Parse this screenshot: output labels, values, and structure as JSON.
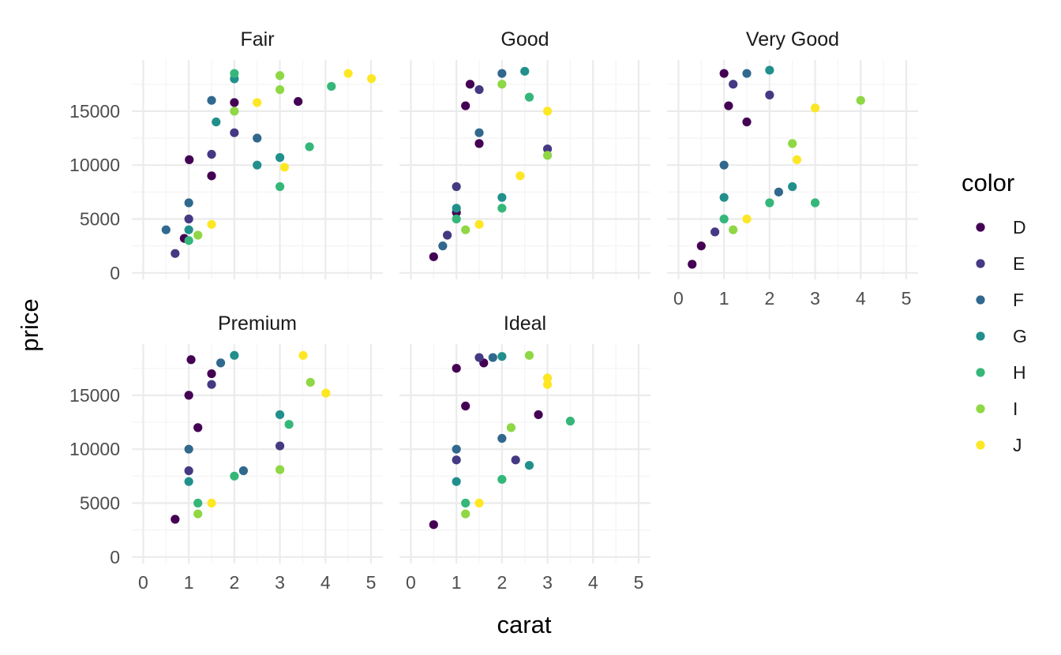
{
  "chart_data": {
    "type": "scatter",
    "facets": [
      "Fair",
      "Good",
      "Very Good",
      "Premium",
      "Ideal"
    ],
    "xlabel": "carat",
    "ylabel": "price",
    "xlim": [
      0,
      5.01
    ],
    "ylim": [
      326,
      18823
    ],
    "x_ticks": [
      0,
      1,
      2,
      3,
      4,
      5
    ],
    "y_ticks": [
      0,
      5000,
      10000,
      15000
    ],
    "grid": true,
    "legend": {
      "title": "color",
      "position": "right",
      "entries": [
        {
          "name": "D",
          "color": "#440154"
        },
        {
          "name": "E",
          "color": "#443A83"
        },
        {
          "name": "F",
          "color": "#31688E"
        },
        {
          "name": "G",
          "color": "#21908C"
        },
        {
          "name": "H",
          "color": "#35B779"
        },
        {
          "name": "I",
          "color": "#8FD744"
        },
        {
          "name": "J",
          "color": "#FDE725"
        }
      ]
    },
    "series": [
      {
        "name": "D",
        "points": [
          {
            "facet": "Fair",
            "x": 0.9,
            "y": 3200
          },
          {
            "facet": "Fair",
            "x": 1.01,
            "y": 10500
          },
          {
            "facet": "Fair",
            "x": 1.5,
            "y": 9000
          },
          {
            "facet": "Fair",
            "x": 2.0,
            "y": 15800
          },
          {
            "facet": "Fair",
            "x": 3.4,
            "y": 15900
          },
          {
            "facet": "Good",
            "x": 0.5,
            "y": 1500
          },
          {
            "facet": "Good",
            "x": 1.0,
            "y": 5600
          },
          {
            "facet": "Good",
            "x": 1.2,
            "y": 15500
          },
          {
            "facet": "Good",
            "x": 1.3,
            "y": 17500
          },
          {
            "facet": "Good",
            "x": 1.5,
            "y": 12000
          },
          {
            "facet": "Very Good",
            "x": 0.3,
            "y": 800
          },
          {
            "facet": "Very Good",
            "x": 0.5,
            "y": 2500
          },
          {
            "facet": "Very Good",
            "x": 1.0,
            "y": 18500
          },
          {
            "facet": "Very Good",
            "x": 1.1,
            "y": 15500
          },
          {
            "facet": "Very Good",
            "x": 1.5,
            "y": 14000
          },
          {
            "facet": "Premium",
            "x": 0.7,
            "y": 3500
          },
          {
            "facet": "Premium",
            "x": 1.0,
            "y": 15000
          },
          {
            "facet": "Premium",
            "x": 1.05,
            "y": 18300
          },
          {
            "facet": "Premium",
            "x": 1.2,
            "y": 12000
          },
          {
            "facet": "Premium",
            "x": 1.5,
            "y": 17000
          },
          {
            "facet": "Ideal",
            "x": 0.5,
            "y": 3000
          },
          {
            "facet": "Ideal",
            "x": 1.0,
            "y": 17500
          },
          {
            "facet": "Ideal",
            "x": 1.2,
            "y": 14000
          },
          {
            "facet": "Ideal",
            "x": 1.6,
            "y": 18000
          },
          {
            "facet": "Ideal",
            "x": 2.8,
            "y": 13200
          }
        ]
      },
      {
        "name": "E",
        "points": [
          {
            "facet": "Fair",
            "x": 0.7,
            "y": 1800
          },
          {
            "facet": "Fair",
            "x": 1.0,
            "y": 5000
          },
          {
            "facet": "Fair",
            "x": 1.5,
            "y": 11000
          },
          {
            "facet": "Fair",
            "x": 2.0,
            "y": 13000
          },
          {
            "facet": "Good",
            "x": 0.8,
            "y": 3500
          },
          {
            "facet": "Good",
            "x": 1.0,
            "y": 8000
          },
          {
            "facet": "Good",
            "x": 1.5,
            "y": 17000
          },
          {
            "facet": "Good",
            "x": 3.0,
            "y": 11500
          },
          {
            "facet": "Very Good",
            "x": 0.8,
            "y": 3800
          },
          {
            "facet": "Very Good",
            "x": 1.2,
            "y": 17500
          },
          {
            "facet": "Very Good",
            "x": 2.0,
            "y": 16500
          },
          {
            "facet": "Premium",
            "x": 1.0,
            "y": 8000
          },
          {
            "facet": "Premium",
            "x": 1.5,
            "y": 16000
          },
          {
            "facet": "Premium",
            "x": 3.0,
            "y": 10300
          },
          {
            "facet": "Ideal",
            "x": 1.0,
            "y": 9000
          },
          {
            "facet": "Ideal",
            "x": 1.5,
            "y": 18500
          },
          {
            "facet": "Ideal",
            "x": 2.3,
            "y": 9000
          }
        ]
      },
      {
        "name": "F",
        "points": [
          {
            "facet": "Fair",
            "x": 0.5,
            "y": 4000
          },
          {
            "facet": "Fair",
            "x": 1.0,
            "y": 6500
          },
          {
            "facet": "Fair",
            "x": 1.5,
            "y": 16000
          },
          {
            "facet": "Fair",
            "x": 2.5,
            "y": 12500
          },
          {
            "facet": "Good",
            "x": 0.7,
            "y": 2500
          },
          {
            "facet": "Good",
            "x": 1.5,
            "y": 13000
          },
          {
            "facet": "Good",
            "x": 2.0,
            "y": 18500
          },
          {
            "facet": "Very Good",
            "x": 1.0,
            "y": 10000
          },
          {
            "facet": "Very Good",
            "x": 1.5,
            "y": 18500
          },
          {
            "facet": "Very Good",
            "x": 2.2,
            "y": 7500
          },
          {
            "facet": "Premium",
            "x": 1.0,
            "y": 10000
          },
          {
            "facet": "Premium",
            "x": 1.7,
            "y": 18000
          },
          {
            "facet": "Premium",
            "x": 2.2,
            "y": 8000
          },
          {
            "facet": "Ideal",
            "x": 1.0,
            "y": 10000
          },
          {
            "facet": "Ideal",
            "x": 1.8,
            "y": 18500
          },
          {
            "facet": "Ideal",
            "x": 2.0,
            "y": 11000
          }
        ]
      },
      {
        "name": "G",
        "points": [
          {
            "facet": "Fair",
            "x": 1.0,
            "y": 4000
          },
          {
            "facet": "Fair",
            "x": 1.6,
            "y": 14000
          },
          {
            "facet": "Fair",
            "x": 2.0,
            "y": 18000
          },
          {
            "facet": "Fair",
            "x": 2.5,
            "y": 10000
          },
          {
            "facet": "Fair",
            "x": 3.0,
            "y": 10700
          },
          {
            "facet": "Good",
            "x": 1.0,
            "y": 6000
          },
          {
            "facet": "Good",
            "x": 2.0,
            "y": 7000
          },
          {
            "facet": "Good",
            "x": 2.5,
            "y": 18700
          },
          {
            "facet": "Very Good",
            "x": 1.0,
            "y": 7000
          },
          {
            "facet": "Very Good",
            "x": 2.0,
            "y": 18800
          },
          {
            "facet": "Very Good",
            "x": 2.5,
            "y": 8000
          },
          {
            "facet": "Premium",
            "x": 1.0,
            "y": 7000
          },
          {
            "facet": "Premium",
            "x": 2.0,
            "y": 18700
          },
          {
            "facet": "Premium",
            "x": 3.0,
            "y": 13200
          },
          {
            "facet": "Ideal",
            "x": 1.0,
            "y": 7000
          },
          {
            "facet": "Ideal",
            "x": 2.0,
            "y": 18600
          },
          {
            "facet": "Ideal",
            "x": 2.6,
            "y": 8500
          }
        ]
      },
      {
        "name": "H",
        "points": [
          {
            "facet": "Fair",
            "x": 1.0,
            "y": 3000
          },
          {
            "facet": "Fair",
            "x": 2.0,
            "y": 18500
          },
          {
            "facet": "Fair",
            "x": 3.0,
            "y": 8000
          },
          {
            "facet": "Fair",
            "x": 3.65,
            "y": 11700
          },
          {
            "facet": "Fair",
            "x": 4.13,
            "y": 17300
          },
          {
            "facet": "Good",
            "x": 1.0,
            "y": 5000
          },
          {
            "facet": "Good",
            "x": 2.0,
            "y": 6000
          },
          {
            "facet": "Good",
            "x": 2.6,
            "y": 16300
          },
          {
            "facet": "Very Good",
            "x": 1.0,
            "y": 5000
          },
          {
            "facet": "Very Good",
            "x": 2.0,
            "y": 6500
          },
          {
            "facet": "Very Good",
            "x": 3.0,
            "y": 6500
          },
          {
            "facet": "Premium",
            "x": 1.2,
            "y": 5000
          },
          {
            "facet": "Premium",
            "x": 2.0,
            "y": 7500
          },
          {
            "facet": "Premium",
            "x": 3.2,
            "y": 12300
          },
          {
            "facet": "Ideal",
            "x": 1.2,
            "y": 5000
          },
          {
            "facet": "Ideal",
            "x": 2.0,
            "y": 7200
          },
          {
            "facet": "Ideal",
            "x": 3.5,
            "y": 12600
          }
        ]
      },
      {
        "name": "I",
        "points": [
          {
            "facet": "Fair",
            "x": 1.2,
            "y": 3500
          },
          {
            "facet": "Fair",
            "x": 2.0,
            "y": 15000
          },
          {
            "facet": "Fair",
            "x": 3.0,
            "y": 17000
          },
          {
            "facet": "Fair",
            "x": 3.0,
            "y": 18300
          },
          {
            "facet": "Good",
            "x": 1.2,
            "y": 4000
          },
          {
            "facet": "Good",
            "x": 2.0,
            "y": 17500
          },
          {
            "facet": "Good",
            "x": 3.0,
            "y": 10900
          },
          {
            "facet": "Very Good",
            "x": 1.2,
            "y": 4000
          },
          {
            "facet": "Very Good",
            "x": 2.5,
            "y": 12000
          },
          {
            "facet": "Very Good",
            "x": 4.0,
            "y": 16000
          },
          {
            "facet": "Premium",
            "x": 1.2,
            "y": 4000
          },
          {
            "facet": "Premium",
            "x": 3.0,
            "y": 8100
          },
          {
            "facet": "Premium",
            "x": 3.67,
            "y": 16200
          },
          {
            "facet": "Ideal",
            "x": 1.2,
            "y": 4000
          },
          {
            "facet": "Ideal",
            "x": 2.2,
            "y": 12000
          },
          {
            "facet": "Ideal",
            "x": 2.6,
            "y": 18700
          }
        ]
      },
      {
        "name": "J",
        "points": [
          {
            "facet": "Fair",
            "x": 1.5,
            "y": 4500
          },
          {
            "facet": "Fair",
            "x": 2.5,
            "y": 15800
          },
          {
            "facet": "Fair",
            "x": 3.1,
            "y": 9800
          },
          {
            "facet": "Fair",
            "x": 4.5,
            "y": 18500
          },
          {
            "facet": "Fair",
            "x": 5.01,
            "y": 18018
          },
          {
            "facet": "Good",
            "x": 1.5,
            "y": 4500
          },
          {
            "facet": "Good",
            "x": 2.4,
            "y": 9000
          },
          {
            "facet": "Good",
            "x": 3.0,
            "y": 15000
          },
          {
            "facet": "Very Good",
            "x": 1.5,
            "y": 5000
          },
          {
            "facet": "Very Good",
            "x": 2.6,
            "y": 10500
          },
          {
            "facet": "Very Good",
            "x": 3.0,
            "y": 15300
          },
          {
            "facet": "Premium",
            "x": 1.5,
            "y": 5000
          },
          {
            "facet": "Premium",
            "x": 3.51,
            "y": 18700
          },
          {
            "facet": "Premium",
            "x": 4.01,
            "y": 15200
          },
          {
            "facet": "Ideal",
            "x": 1.5,
            "y": 5000
          },
          {
            "facet": "Ideal",
            "x": 3.0,
            "y": 16000
          },
          {
            "facet": "Ideal",
            "x": 3.0,
            "y": 16600
          }
        ]
      }
    ]
  }
}
